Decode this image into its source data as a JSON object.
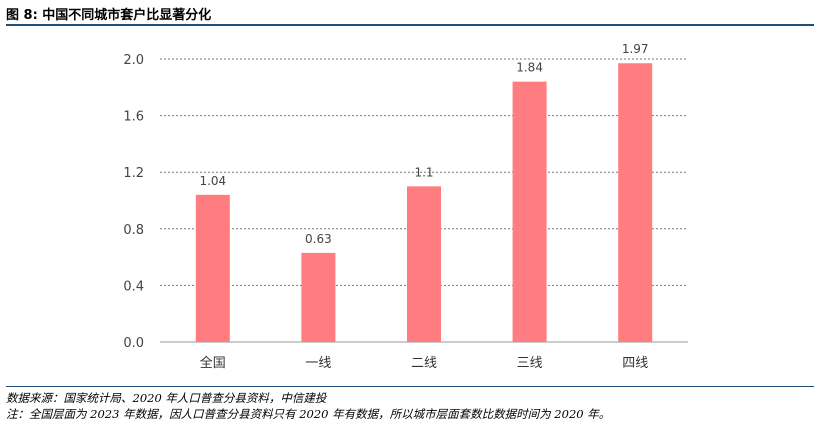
{
  "figure": {
    "title": "图 8: 中国不同城市套户比显著分化",
    "source": "数据来源：国家统计局、2020 年人口普查分县资料，中信建投",
    "note": "注：全国层面为 2023 年数据，因人口普查分县资料只有 2020 年有数据，所以城市层面套数比数据时间为 2020 年。"
  },
  "chart_data": {
    "type": "bar",
    "title": "",
    "xlabel": "",
    "ylabel": "",
    "categories": [
      "全国",
      "一线",
      "二线",
      "三线",
      "四线"
    ],
    "values": [
      1.04,
      0.63,
      1.1,
      1.84,
      1.97
    ],
    "data_labels": [
      "1.04",
      "0.63",
      "1.1",
      "1.84",
      "1.97"
    ],
    "ylim": [
      0,
      2.0
    ],
    "yticks": [
      0.0,
      0.4,
      0.8,
      1.2,
      1.6,
      2.0
    ],
    "ytick_labels": [
      "0.0",
      "0.4",
      "0.8",
      "1.2",
      "1.6",
      "2.0"
    ],
    "grid": true,
    "bar_color": "#ff7c80",
    "legend": "none"
  }
}
